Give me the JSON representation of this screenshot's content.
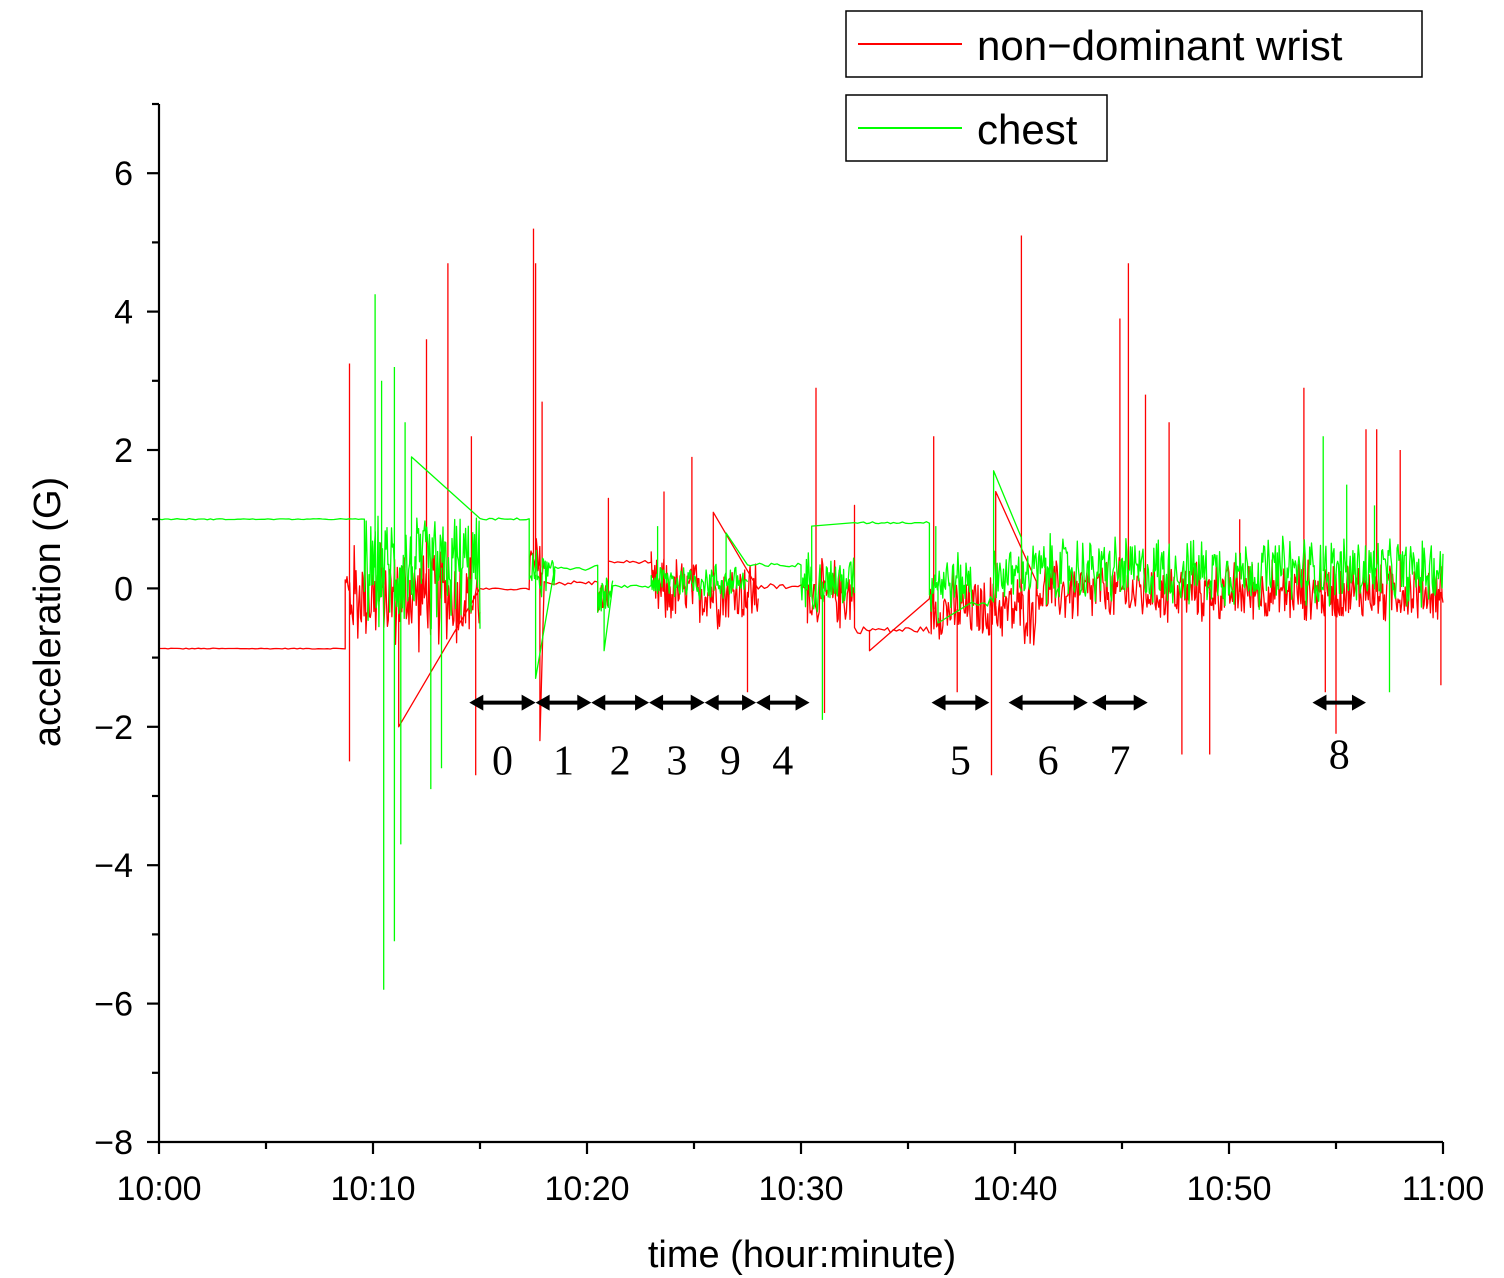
{
  "chart_data": {
    "type": "line",
    "xlabel": "time (hour:minute)",
    "ylabel": "acceleration (G)",
    "xlim_minutes": [
      0,
      60
    ],
    "ylim": [
      -8,
      7
    ],
    "x_tick_labels": [
      {
        "minute": 0,
        "label": "10:00"
      },
      {
        "minute": 10,
        "label": "10:10"
      },
      {
        "minute": 20,
        "label": "10:20"
      },
      {
        "minute": 30,
        "label": "10:30"
      },
      {
        "minute": 40,
        "label": "10:40"
      },
      {
        "minute": 50,
        "label": "10:50"
      },
      {
        "minute": 60,
        "label": "11:00"
      }
    ],
    "y_ticks": [
      -8,
      -6,
      -4,
      -2,
      0,
      2,
      4,
      6
    ],
    "y_tick_labels": [
      "−8",
      "−6",
      "−4",
      "−2",
      "0",
      "2",
      "4",
      "6"
    ],
    "legend": {
      "placement": "top-right",
      "entries": [
        "non−dominant wrist",
        "chest"
      ]
    },
    "series": [
      {
        "name": "non−dominant wrist",
        "color": "#ff0000",
        "segments": [
          {
            "start": 0,
            "end": 8.7,
            "mean": -0.87,
            "amp": 0.01,
            "spikes": []
          },
          {
            "start": 8.7,
            "end": 15.0,
            "mean": -0.1,
            "amp": 0.9,
            "spikes": [
              [
                8.9,
                3.25
              ],
              [
                8.9,
                -2.5
              ],
              [
                12.5,
                3.6
              ],
              [
                13.5,
                4.7
              ],
              [
                14.6,
                2.2
              ],
              [
                14.8,
                -2.7
              ],
              [
                11.2,
                -2.0
              ]
            ]
          },
          {
            "start": 15.0,
            "end": 17.3,
            "mean": -0.01,
            "amp": 0.02,
            "spikes": []
          },
          {
            "start": 17.3,
            "end": 18.0,
            "mean": 0.3,
            "amp": 0.6,
            "spikes": [
              [
                17.5,
                5.2
              ],
              [
                17.6,
                4.7
              ],
              [
                17.9,
                2.7
              ],
              [
                17.8,
                -2.2
              ]
            ]
          },
          {
            "start": 18.0,
            "end": 20.5,
            "mean": 0.08,
            "amp": 0.05,
            "spikes": []
          },
          {
            "start": 20.5,
            "end": 21.0,
            "mean": -0.15,
            "amp": 0.3,
            "spikes": [
              [
                21.0,
                1.3
              ]
            ]
          },
          {
            "start": 21.0,
            "end": 23.0,
            "mean": 0.38,
            "amp": 0.03,
            "spikes": []
          },
          {
            "start": 23.0,
            "end": 28.0,
            "mean": -0.05,
            "amp": 0.6,
            "spikes": [
              [
                24.9,
                1.9
              ],
              [
                23.6,
                1.4
              ],
              [
                27.5,
                -1.5
              ],
              [
                25.9,
                1.1
              ]
            ]
          },
          {
            "start": 28.0,
            "end": 30.3,
            "mean": 0.02,
            "amp": 0.06,
            "spikes": []
          },
          {
            "start": 30.3,
            "end": 32.5,
            "mean": -0.1,
            "amp": 0.6,
            "spikes": [
              [
                30.7,
                2.9
              ],
              [
                31.1,
                -1.8
              ],
              [
                32.5,
                1.2
              ]
            ]
          },
          {
            "start": 32.5,
            "end": 36.0,
            "mean": -0.6,
            "amp": 0.07,
            "spikes": [
              [
                33.2,
                -0.9
              ]
            ]
          },
          {
            "start": 36.0,
            "end": 41.0,
            "mean": -0.3,
            "amp": 0.6,
            "spikes": [
              [
                36.2,
                2.2
              ],
              [
                38.9,
                -2.7
              ],
              [
                37.3,
                -1.5
              ],
              [
                40.3,
                5.1
              ],
              [
                39.1,
                1.4
              ]
            ]
          },
          {
            "start": 41.0,
            "end": 60.0,
            "mean": -0.05,
            "amp": 0.55,
            "spikes": [
              [
                44.9,
                3.9
              ],
              [
                45.3,
                4.7
              ],
              [
                46.1,
                2.8
              ],
              [
                47.8,
                -2.4
              ],
              [
                47.2,
                2.4
              ],
              [
                49.1,
                -2.4
              ],
              [
                53.5,
                2.9
              ],
              [
                54.5,
                -1.5
              ],
              [
                55.0,
                -2.1
              ],
              [
                56.4,
                2.3
              ],
              [
                56.9,
                2.3
              ],
              [
                58.0,
                2.0
              ],
              [
                59.9,
                -1.4
              ],
              [
                50.5,
                1.0
              ]
            ]
          }
        ]
      },
      {
        "name": "chest",
        "color": "#00ff00",
        "segments": [
          {
            "start": 0,
            "end": 9.6,
            "mean": 1.0,
            "amp": 0.01,
            "spikes": []
          },
          {
            "start": 9.6,
            "end": 15.0,
            "mean": 0.3,
            "amp": 1.0,
            "spikes": [
              [
                10.1,
                4.25
              ],
              [
                10.4,
                3.0
              ],
              [
                11.0,
                3.2
              ],
              [
                10.5,
                -5.8
              ],
              [
                11.0,
                -5.1
              ],
              [
                11.3,
                -3.7
              ],
              [
                11.5,
                2.4
              ],
              [
                12.7,
                -2.9
              ],
              [
                13.2,
                -2.6
              ],
              [
                11.8,
                1.9
              ]
            ]
          },
          {
            "start": 15.0,
            "end": 17.3,
            "mean": 1.0,
            "amp": 0.02,
            "spikes": []
          },
          {
            "start": 17.3,
            "end": 18.5,
            "mean": 0.2,
            "amp": 0.4,
            "spikes": [
              [
                17.6,
                -1.3
              ]
            ]
          },
          {
            "start": 18.5,
            "end": 20.5,
            "mean": 0.3,
            "amp": 0.06,
            "spikes": []
          },
          {
            "start": 20.5,
            "end": 21.2,
            "mean": -0.1,
            "amp": 0.3,
            "spikes": [
              [
                20.8,
                -0.9
              ]
            ]
          },
          {
            "start": 21.2,
            "end": 23.0,
            "mean": 0.03,
            "amp": 0.03,
            "spikes": []
          },
          {
            "start": 23.0,
            "end": 27.5,
            "mean": 0.1,
            "amp": 0.35,
            "spikes": [
              [
                23.3,
                0.9
              ],
              [
                26.5,
                0.8
              ]
            ]
          },
          {
            "start": 27.5,
            "end": 30.0,
            "mean": 0.33,
            "amp": 0.05,
            "spikes": []
          },
          {
            "start": 30.0,
            "end": 32.5,
            "mean": 0.1,
            "amp": 0.5,
            "spikes": [
              [
                31.0,
                -1.9
              ],
              [
                30.5,
                0.9
              ]
            ]
          },
          {
            "start": 32.5,
            "end": 36.0,
            "mean": 0.95,
            "amp": 0.02,
            "spikes": []
          },
          {
            "start": 36.0,
            "end": 38.0,
            "mean": 0.1,
            "amp": 0.5,
            "spikes": [
              [
                36.3,
                0.9
              ],
              [
                36.4,
                -0.5
              ]
            ]
          },
          {
            "start": 38.0,
            "end": 39.0,
            "mean": -0.2,
            "amp": 0.1,
            "spikes": []
          },
          {
            "start": 39.0,
            "end": 40.3,
            "mean": 0.2,
            "amp": 0.5,
            "spikes": [
              [
                39.0,
                1.7
              ]
            ]
          },
          {
            "start": 40.3,
            "end": 60.0,
            "mean": 0.25,
            "amp": 0.6,
            "spikes": [
              [
                55.5,
                1.5
              ],
              [
                54.4,
                2.2
              ],
              [
                56.8,
                1.2
              ],
              [
                57.5,
                -1.5
              ]
            ]
          }
        ]
      }
    ],
    "annotations": [
      {
        "label": "0",
        "from": 14.5,
        "to": 17.6
      },
      {
        "label": "1",
        "from": 17.6,
        "to": 20.2
      },
      {
        "label": "2",
        "from": 20.2,
        "to": 22.9
      },
      {
        "label": "3",
        "from": 22.9,
        "to": 25.5
      },
      {
        "label": "9",
        "from": 25.5,
        "to": 27.9
      },
      {
        "label": "4",
        "from": 27.9,
        "to": 30.4
      },
      {
        "label": "5",
        "from": 36.1,
        "to": 38.8
      },
      {
        "label": "6",
        "from": 39.7,
        "to": 43.4
      },
      {
        "label": "7",
        "from": 43.6,
        "to": 46.2
      },
      {
        "label": "8",
        "from": 53.9,
        "to": 56.4
      }
    ],
    "annotation_y": -1.65
  }
}
